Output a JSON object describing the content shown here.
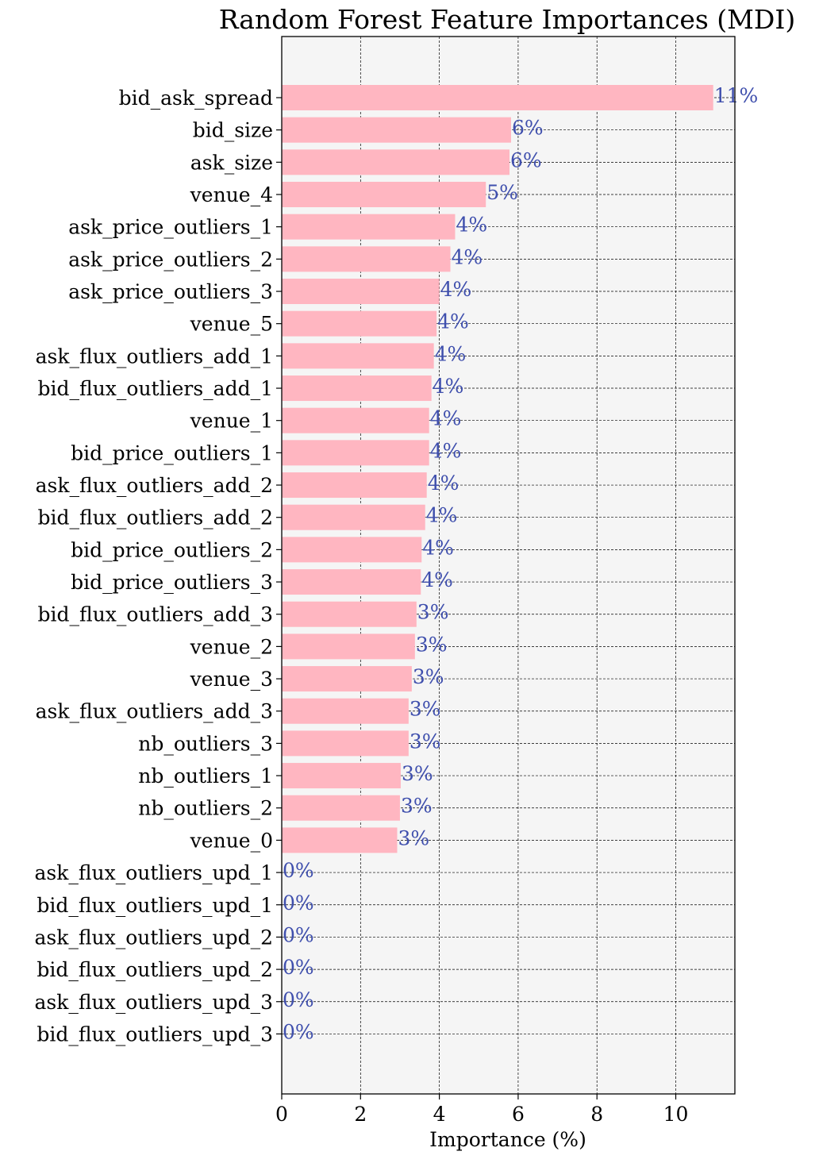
{
  "chart_data": {
    "type": "bar",
    "orientation": "horizontal",
    "title": "Random Forest Feature Importances (MDI)",
    "xlabel": "Importance (%)",
    "ylabel": "",
    "xlim": [
      0,
      11.5
    ],
    "xticks": [
      0,
      2,
      4,
      6,
      8,
      10
    ],
    "grid": true,
    "bar_color": "#ffb6c1",
    "label_color": "#3f4fad",
    "plot_background": "#f5f5f5",
    "categories": [
      "bid_ask_spread",
      "bid_size",
      "ask_size",
      "venue_4",
      "ask_price_outliers_1",
      "ask_price_outliers_2",
      "ask_price_outliers_3",
      "venue_5",
      "ask_flux_outliers_add_1",
      "bid_flux_outliers_add_1",
      "venue_1",
      "bid_price_outliers_1",
      "ask_flux_outliers_add_2",
      "bid_flux_outliers_add_2",
      "bid_price_outliers_2",
      "bid_price_outliers_3",
      "bid_flux_outliers_add_3",
      "venue_2",
      "venue_3",
      "ask_flux_outliers_add_3",
      "nb_outliers_3",
      "nb_outliers_1",
      "nb_outliers_2",
      "venue_0",
      "ask_flux_outliers_upd_1",
      "bid_flux_outliers_upd_1",
      "ask_flux_outliers_upd_2",
      "bid_flux_outliers_upd_2",
      "ask_flux_outliers_upd_3",
      "bid_flux_outliers_upd_3"
    ],
    "values": [
      10.95,
      5.82,
      5.78,
      5.18,
      4.4,
      4.28,
      4.0,
      3.93,
      3.86,
      3.8,
      3.74,
      3.74,
      3.68,
      3.64,
      3.55,
      3.53,
      3.42,
      3.38,
      3.3,
      3.22,
      3.22,
      3.02,
      3.0,
      2.93,
      0.0,
      0.0,
      0.0,
      0.0,
      0.0,
      0.0
    ],
    "value_labels": [
      "11%",
      "6%",
      "6%",
      "5%",
      "4%",
      "4%",
      "4%",
      "4%",
      "4%",
      "4%",
      "4%",
      "4%",
      "4%",
      "4%",
      "4%",
      "4%",
      "3%",
      "3%",
      "3%",
      "3%",
      "3%",
      "3%",
      "3%",
      "3%",
      "0%",
      "0%",
      "0%",
      "0%",
      "0%",
      "0%"
    ]
  }
}
